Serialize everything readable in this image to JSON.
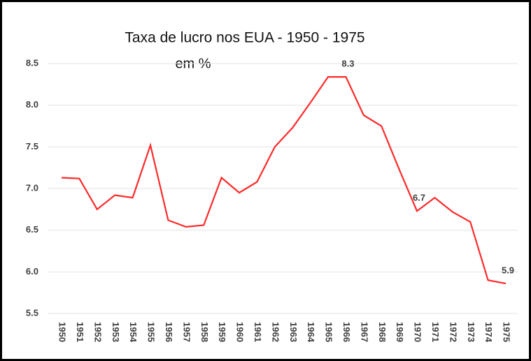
{
  "chart_data": {
    "type": "line",
    "title": "Taxa de lucro nos EUA - 1950 - 1975",
    "subtitle": "em %",
    "categories": [
      "1950",
      "1951",
      "1952",
      "1953",
      "1954",
      "1955",
      "1956",
      "1957",
      "1958",
      "1959",
      "1960",
      "1961",
      "1962",
      "1963",
      "1964",
      "1965",
      "1966",
      "1967",
      "1968",
      "1969",
      "1970",
      "1971",
      "1972",
      "1973",
      "1974",
      "1975"
    ],
    "series": [
      {
        "name": "Taxa de lucro",
        "color": "#ff2a2a",
        "values": [
          7.13,
          7.12,
          6.75,
          6.92,
          6.89,
          7.52,
          6.62,
          6.54,
          6.56,
          7.13,
          6.95,
          7.08,
          7.5,
          7.73,
          8.03,
          8.34,
          8.34,
          7.88,
          7.75,
          7.23,
          6.73,
          6.89,
          6.72,
          6.6,
          5.9,
          5.86
        ],
        "value_labels": [
          null,
          null,
          null,
          null,
          null,
          null,
          null,
          null,
          null,
          null,
          null,
          null,
          null,
          null,
          null,
          null,
          "8.3",
          null,
          null,
          null,
          "6.7",
          null,
          null,
          null,
          null,
          "5.9"
        ]
      }
    ],
    "ylim": [
      5.5,
      8.5
    ],
    "yticks": [
      5.5,
      {
        "value": 6,
        "label": "6.0"
      },
      6.5,
      {
        "value": 7,
        "label": "7.0"
      },
      7.5,
      {
        "value": 8,
        "label": "8.0"
      },
      8.5
    ],
    "grid": true
  }
}
